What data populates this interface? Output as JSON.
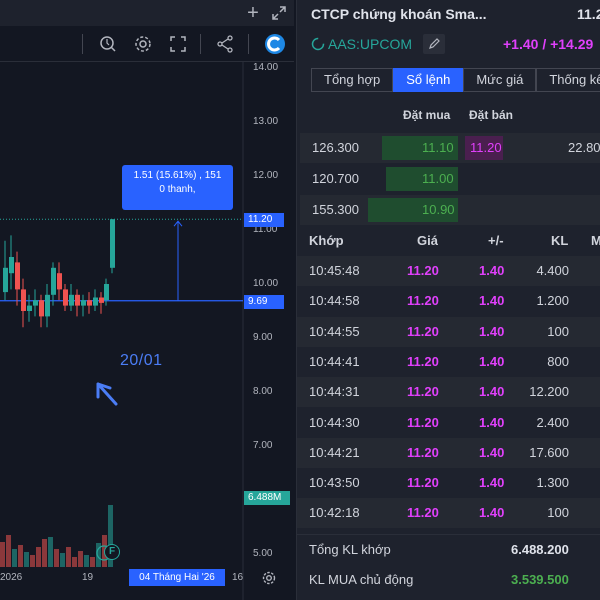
{
  "chart": {
    "y_axis_labels": [
      "14.00",
      "13.00",
      "12.00",
      "11.00",
      "10.00",
      "9.00",
      "8.00",
      "7.00",
      "5.00"
    ],
    "x_axis_labels": [
      "2026",
      "19",
      "16"
    ],
    "crosshair_date": "04 Tháng Hai '26",
    "price_tag_last": "11.20",
    "price_tag_cursor": "9.69",
    "volume_tag": "6.488M",
    "measure_line1": "1.51 (15.61%) , 151",
    "measure_line2": "0 thanh,",
    "annotation": "20/01",
    "event_badge": "F",
    "colors": {
      "up": "#26a69a",
      "down": "#ef5350",
      "accent": "#2962ff",
      "price_line": "#2962ff"
    }
  },
  "header": {
    "title": "CTCP chứng khoán Sma...",
    "price": "11.2",
    "ticker": "AAS:UPCOM",
    "change": "+1.40 / +14.29"
  },
  "tabs": [
    "Tổng hợp",
    "Sổ lệnh",
    "Mức giá",
    "Thống kê"
  ],
  "orderbook": {
    "bid_header": "Đặt mua",
    "ask_header": "Đặt bán",
    "rows": [
      {
        "bid_vol": "126.300",
        "bid_price": "11.10",
        "ask_price": "11.20",
        "ask_vol": "22.80"
      },
      {
        "bid_vol": "120.700",
        "bid_price": "11.00",
        "ask_price": "",
        "ask_vol": ""
      },
      {
        "bid_vol": "155.300",
        "bid_price": "10.90",
        "ask_price": "",
        "ask_vol": ""
      }
    ]
  },
  "trades": {
    "headers": [
      "Khớp",
      "Giá",
      "+/-",
      "KL",
      "M"
    ],
    "rows": [
      {
        "time": "10:45:48",
        "price": "11.20",
        "change": "1.40",
        "vol": "4.400"
      },
      {
        "time": "10:44:58",
        "price": "11.20",
        "change": "1.40",
        "vol": "1.200"
      },
      {
        "time": "10:44:55",
        "price": "11.20",
        "change": "1.40",
        "vol": "100"
      },
      {
        "time": "10:44:41",
        "price": "11.20",
        "change": "1.40",
        "vol": "800"
      },
      {
        "time": "10:44:31",
        "price": "11.20",
        "change": "1.40",
        "vol": "12.200"
      },
      {
        "time": "10:44:30",
        "price": "11.20",
        "change": "1.40",
        "vol": "2.400"
      },
      {
        "time": "10:44:21",
        "price": "11.20",
        "change": "1.40",
        "vol": "17.600"
      },
      {
        "time": "10:43:50",
        "price": "11.20",
        "change": "1.40",
        "vol": "1.300"
      },
      {
        "time": "10:42:18",
        "price": "11.20",
        "change": "1.40",
        "vol": "100"
      }
    ]
  },
  "summary": [
    {
      "label": "Tổng KL khớp",
      "value": "6.488.200"
    },
    {
      "label": "KL MUA chủ động",
      "value": "3.539.500"
    }
  ]
}
